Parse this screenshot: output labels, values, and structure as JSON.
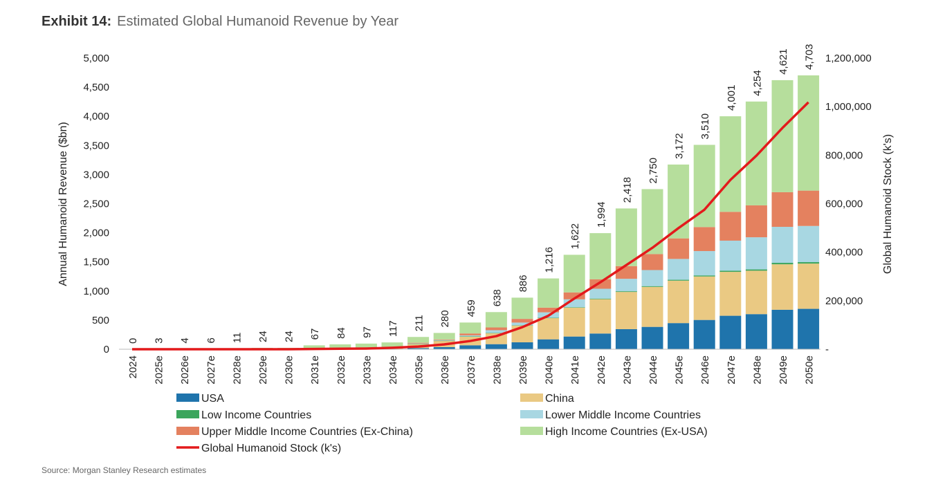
{
  "title": {
    "label": "Exhibit 14:",
    "text": "Estimated Global Humanoid Revenue by Year"
  },
  "source": "Source: Morgan Stanley Research estimates",
  "chart_data": {
    "type": "bar",
    "stacked": true,
    "categories": [
      "2024",
      "2025e",
      "2026e",
      "2027e",
      "2028e",
      "2029e",
      "2030e",
      "2031e",
      "2032e",
      "2033e",
      "2034e",
      "2035e",
      "2036e",
      "2037e",
      "2038e",
      "2039e",
      "2040e",
      "2041e",
      "2042e",
      "2043e",
      "2044e",
      "2045e",
      "2046e",
      "2047e",
      "2048e",
      "2049e",
      "2050e"
    ],
    "totals": [
      0,
      3,
      4,
      6,
      11,
      24,
      24,
      67,
      84,
      97,
      117,
      211,
      280,
      459,
      638,
      886,
      1216,
      1622,
      1994,
      2418,
      2750,
      3172,
      3510,
      4001,
      4254,
      4621,
      4703
    ],
    "series": [
      {
        "name": "USA",
        "color": "#1f74ac",
        "values": [
          0,
          0,
          0,
          0,
          0,
          1,
          1,
          2,
          2,
          3,
          5,
          20,
          36,
          68,
          87,
          119,
          170,
          218,
          270,
          345,
          384,
          449,
          503,
          575,
          603,
          678,
          694
        ]
      },
      {
        "name": "China",
        "color": "#eac983",
        "values": [
          0,
          0,
          0,
          1,
          1,
          2,
          2,
          5,
          6,
          8,
          15,
          70,
          110,
          150,
          190,
          289,
          365,
          496,
          590,
          639,
          687,
          729,
          747,
          754,
          746,
          781,
          777
        ]
      },
      {
        "name": "Low Income Countries",
        "color": "#3ba55c",
        "values": [
          0,
          0,
          0,
          0,
          0,
          0,
          0,
          0,
          0,
          0,
          0,
          1,
          1,
          2,
          3,
          4,
          5,
          8,
          10,
          12,
          13,
          15,
          18,
          20,
          22,
          25,
          25
        ]
      },
      {
        "name": "Lower Middle Income Countries",
        "color": "#a8d7e2",
        "values": [
          0,
          0,
          0,
          0,
          0,
          0,
          0,
          1,
          1,
          1,
          2,
          8,
          11,
          18,
          47,
          46,
          94,
          135,
          169,
          214,
          276,
          358,
          418,
          516,
          552,
          618,
          621
        ]
      },
      {
        "name": "Upper Middle Income Countries (Ex-China)",
        "color": "#e4815f",
        "values": [
          0,
          0,
          0,
          0,
          1,
          1,
          1,
          2,
          2,
          3,
          5,
          12,
          10,
          33,
          47,
          63,
          80,
          119,
          163,
          218,
          274,
          353,
          412,
          495,
          548,
          595,
          607
        ]
      },
      {
        "name": "High Income Countries (Ex-USA)",
        "color": "#b6de9c",
        "values": [
          0,
          3,
          4,
          5,
          9,
          20,
          20,
          57,
          73,
          82,
          90,
          100,
          112,
          188,
          264,
          365,
          502,
          646,
          792,
          990,
          1116,
          1268,
          1412,
          1641,
          1783,
          1924,
          1979
        ]
      }
    ],
    "line": {
      "name": "Global Humanoid Stock (k's)",
      "color": "#e31a1c",
      "axis": "right",
      "values": [
        0,
        0,
        0,
        0,
        0,
        0,
        0,
        1000,
        2000,
        3000,
        6000,
        11000,
        20000,
        34000,
        54000,
        91000,
        138000,
        209000,
        276000,
        347000,
        418000,
        499000,
        575000,
        698000,
        798000,
        912000,
        1018000
      ]
    },
    "ylabel": "Annual Humanoid Revenue ($bn)",
    "y2label": "Global Humanoid Stock (k's)",
    "ylim": [
      0,
      5000
    ],
    "y2lim": [
      0,
      1200000
    ],
    "yticks": [
      "0",
      "500",
      "1,000",
      "1,500",
      "2,000",
      "2,500",
      "3,000",
      "3,500",
      "4,000",
      "4,500",
      "5,000"
    ],
    "y2ticks": [
      "-",
      "200,000",
      "400,000",
      "600,000",
      "800,000",
      "1,000,000",
      "1,200,000"
    ],
    "total_labels": [
      "0",
      "3",
      "4",
      "6",
      "11",
      "24",
      "24",
      "67",
      "84",
      "97",
      "117",
      "211",
      "280",
      "459",
      "638",
      "886",
      "1,216",
      "1,622",
      "1,994",
      "2,418",
      "2,750",
      "3,172",
      "3,510",
      "4,001",
      "4,254",
      "4,621",
      "4,703"
    ],
    "grid": false,
    "legend_position": "bottom"
  }
}
